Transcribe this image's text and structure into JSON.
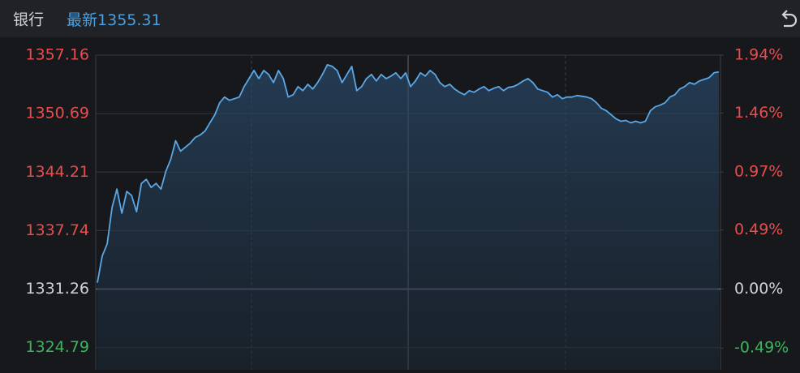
{
  "header": {
    "name": "银行",
    "latest_label": "最新",
    "latest_value": 1355.31
  },
  "chart_data": {
    "type": "line",
    "series": [
      {
        "color": "#5aa8e6",
        "values": [
          1331.97,
          1334.92,
          1336.26,
          1340.28,
          1342.33,
          1339.66,
          1342.07,
          1341.62,
          1339.83,
          1342.96,
          1343.41,
          1342.51,
          1342.96,
          1342.33,
          1344.3,
          1345.64,
          1347.69,
          1346.53,
          1346.98,
          1347.43,
          1348.05,
          1348.32,
          1348.76,
          1349.66,
          1350.55,
          1351.89,
          1352.52,
          1352.16,
          1352.34,
          1352.52,
          1353.68,
          1354.57,
          1355.46,
          1354.57,
          1355.46,
          1355.02,
          1354.12,
          1355.46,
          1354.57,
          1352.52,
          1352.78,
          1353.68,
          1353.23,
          1353.94,
          1353.41,
          1354.12,
          1355.02,
          1356.09,
          1355.91,
          1355.46,
          1354.12,
          1355.02,
          1355.91,
          1353.23,
          1353.68,
          1354.57,
          1355.02,
          1354.3,
          1355.02,
          1354.57,
          1354.84,
          1355.2,
          1354.57,
          1355.2,
          1353.68,
          1354.3,
          1355.2,
          1354.84,
          1355.46,
          1355.02,
          1354.12,
          1353.68,
          1353.94,
          1353.41,
          1353.05,
          1352.78,
          1353.23,
          1353.05,
          1353.41,
          1353.68,
          1353.23,
          1353.5,
          1353.68,
          1353.23,
          1353.59,
          1353.68,
          1353.94,
          1354.3,
          1354.57,
          1354.12,
          1353.41,
          1353.23,
          1353.05,
          1352.52,
          1352.78,
          1352.34,
          1352.52,
          1352.52,
          1352.69,
          1352.61,
          1352.52,
          1352.34,
          1351.89,
          1351.27,
          1351.0,
          1350.55,
          1350.1,
          1349.84,
          1349.93,
          1349.66,
          1349.84,
          1349.66,
          1349.84,
          1351.0,
          1351.44,
          1351.62,
          1351.89,
          1352.52,
          1352.78,
          1353.41,
          1353.68,
          1354.12,
          1353.94,
          1354.3,
          1354.48,
          1354.66,
          1355.2,
          1355.31
        ]
      }
    ],
    "ylim": [
      1322.33,
      1357.16
    ],
    "yticks": [
      1357.16,
      1350.69,
      1344.21,
      1337.74,
      1331.26,
      1324.79
    ],
    "y2lim": [
      -0.67,
      1.94
    ],
    "y2ticks": [
      {
        "value": 1.94,
        "label": "1.94%"
      },
      {
        "value": 1.46,
        "label": "1.46%"
      },
      {
        "value": 0.97,
        "label": "0.97%"
      },
      {
        "value": 0.49,
        "label": "0.49%"
      },
      {
        "value": 0,
        "label": "0.00%"
      },
      {
        "value": -0.49,
        "label": "-0.49%"
      }
    ],
    "up_color": "#e84d4d",
    "down_color": "#3cb55c",
    "flat_color": "#cfd3d8",
    "grid": true
  }
}
